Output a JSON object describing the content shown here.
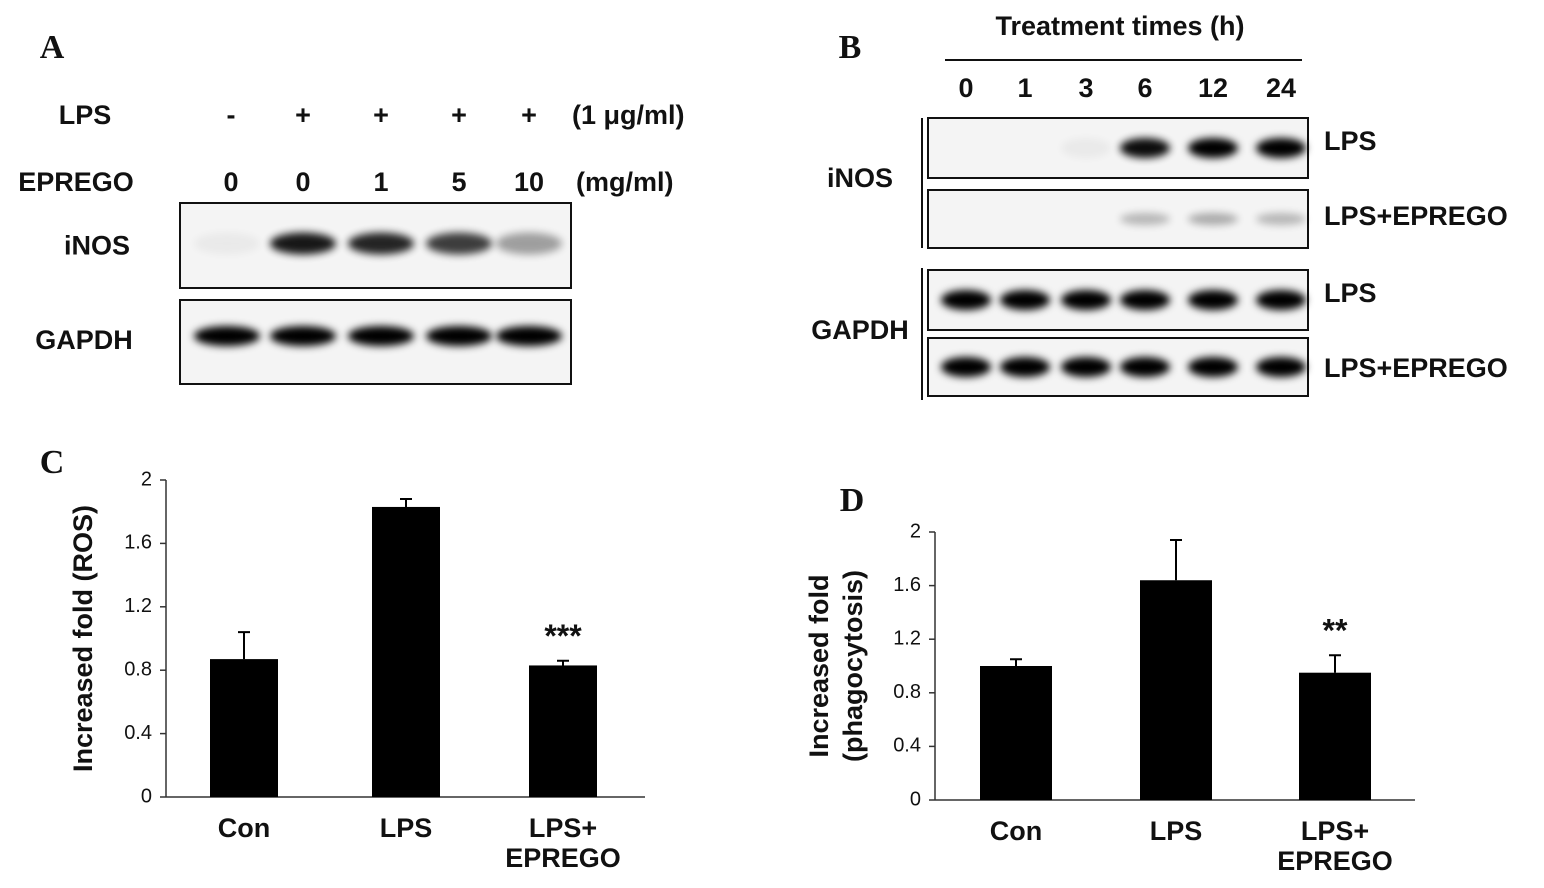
{
  "panels": {
    "A": {
      "label": "A",
      "rows": [
        {
          "name": "LPS",
          "entries": [
            "-",
            "+",
            "+",
            "+",
            "+"
          ],
          "unit": "(1 μg/ml)"
        },
        {
          "name": "EPREGO",
          "entries": [
            "0",
            "0",
            "1",
            "5",
            "10"
          ],
          "unit": "(mg/ml)"
        }
      ],
      "blots": [
        "iNOS",
        "GAPDH"
      ]
    },
    "B": {
      "label": "B",
      "title": "Treatment times (h)",
      "times": [
        "0",
        "1",
        "3",
        "6",
        "12",
        "24"
      ],
      "groups": [
        {
          "name": "iNOS",
          "conditions": [
            "LPS",
            "LPS+EPREGO"
          ]
        },
        {
          "name": "GAPDH",
          "conditions": [
            "LPS",
            "LPS+EPREGO"
          ]
        }
      ]
    }
  },
  "chart_data": [
    {
      "type": "bar",
      "label": "C",
      "ylabel": "Increased fold (ROS)",
      "categories": [
        "Con",
        "LPS",
        "LPS+\nEPREGO"
      ],
      "values": [
        0.87,
        1.83,
        0.83
      ],
      "errors": [
        0.17,
        0.05,
        0.03
      ],
      "color": "#000000",
      "ylim": [
        0,
        2
      ],
      "yticks": [
        0,
        0.4,
        0.8,
        1.2,
        1.6,
        2
      ],
      "annotations": [
        {
          "category": 2,
          "text": "***"
        }
      ]
    },
    {
      "type": "bar",
      "label": "D",
      "ylabel": "Increased fold\n(phagocytosis)",
      "categories": [
        "Con",
        "LPS",
        "LPS+\nEPREGO"
      ],
      "values": [
        1.0,
        1.64,
        0.95
      ],
      "errors": [
        0.05,
        0.3,
        0.13
      ],
      "color": "#000000",
      "ylim": [
        0,
        2
      ],
      "yticks": [
        0,
        0.4,
        0.8,
        1.2,
        1.6,
        2
      ],
      "annotations": [
        {
          "category": 2,
          "text": "**"
        }
      ]
    }
  ]
}
